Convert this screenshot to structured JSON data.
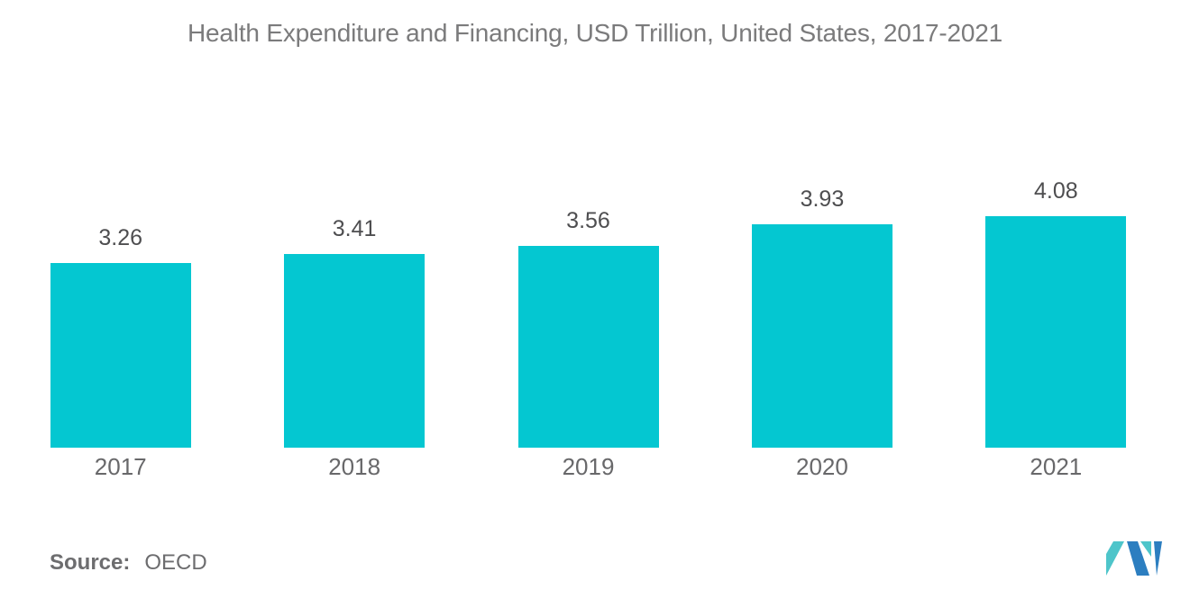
{
  "title": "Health Expenditure and Financing, USD Trillion, United States, 2017-2021",
  "source": {
    "label": "Source:",
    "value": "OECD"
  },
  "logo": {
    "name": "mordor-intelligence-logo",
    "blue": "#2C7EC0",
    "teal": "#4EC5CA"
  },
  "colors": {
    "background": "#FFFFFF",
    "bar": "#04C7D1",
    "title_text": "#7B7B7C",
    "value_label_text": "#4E4E50",
    "category_text": "#68686A",
    "source_text": "#6D6D6F"
  },
  "chart_data": {
    "type": "bar",
    "title": "Health Expenditure and Financing, USD Trillion, United States, 2017-2021",
    "categories": [
      "2017",
      "2018",
      "2019",
      "2020",
      "2021"
    ],
    "values": [
      3.26,
      3.41,
      3.56,
      3.93,
      4.08
    ],
    "data_labels": [
      "3.26",
      "3.41",
      "3.56",
      "3.93",
      "4.08"
    ],
    "data_labels_position": "above_bars",
    "xlabel": "",
    "ylabel": "",
    "ylim": [
      0,
      4.6
    ],
    "grid": false,
    "legend": false,
    "axes_visible": false,
    "bar_color": "#04C7D1"
  }
}
